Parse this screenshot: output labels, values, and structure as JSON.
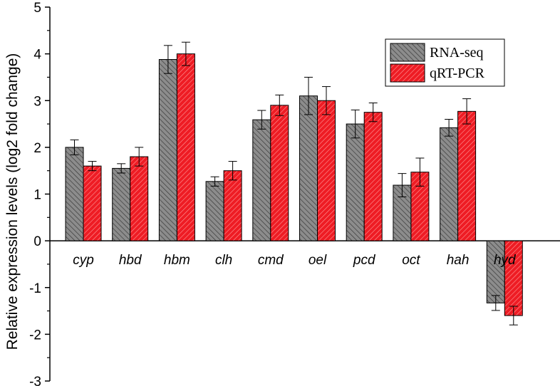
{
  "chart_data": {
    "type": "bar",
    "title": "",
    "xlabel": "",
    "ylabel": "Relative expression levels (log2 fold change)",
    "ylim": [
      -3,
      5
    ],
    "yticks": [
      -3,
      -2,
      -1,
      0,
      1,
      2,
      3,
      4,
      5
    ],
    "categories": [
      "cyp",
      "hbd",
      "hbm",
      "clh",
      "cmd",
      "oel",
      "pcd",
      "oct",
      "hah",
      "hyd"
    ],
    "series": [
      {
        "name": "RNA-seq",
        "color": "#8c8c8c",
        "values": [
          2.0,
          1.55,
          3.88,
          1.27,
          2.59,
          3.1,
          2.5,
          1.19,
          2.42,
          -1.33
        ],
        "errors": [
          0.16,
          0.1,
          0.3,
          0.1,
          0.2,
          0.4,
          0.3,
          0.25,
          0.18,
          0.16
        ]
      },
      {
        "name": "qRT-PCR",
        "color": "#ee1c24",
        "values": [
          1.6,
          1.8,
          4.0,
          1.5,
          2.9,
          3.0,
          2.75,
          1.47,
          2.77,
          -1.6
        ],
        "errors": [
          0.1,
          0.2,
          0.25,
          0.2,
          0.22,
          0.3,
          0.2,
          0.3,
          0.27,
          0.2
        ]
      }
    ],
    "legend": {
      "position": "top-right"
    },
    "grid": false
  }
}
